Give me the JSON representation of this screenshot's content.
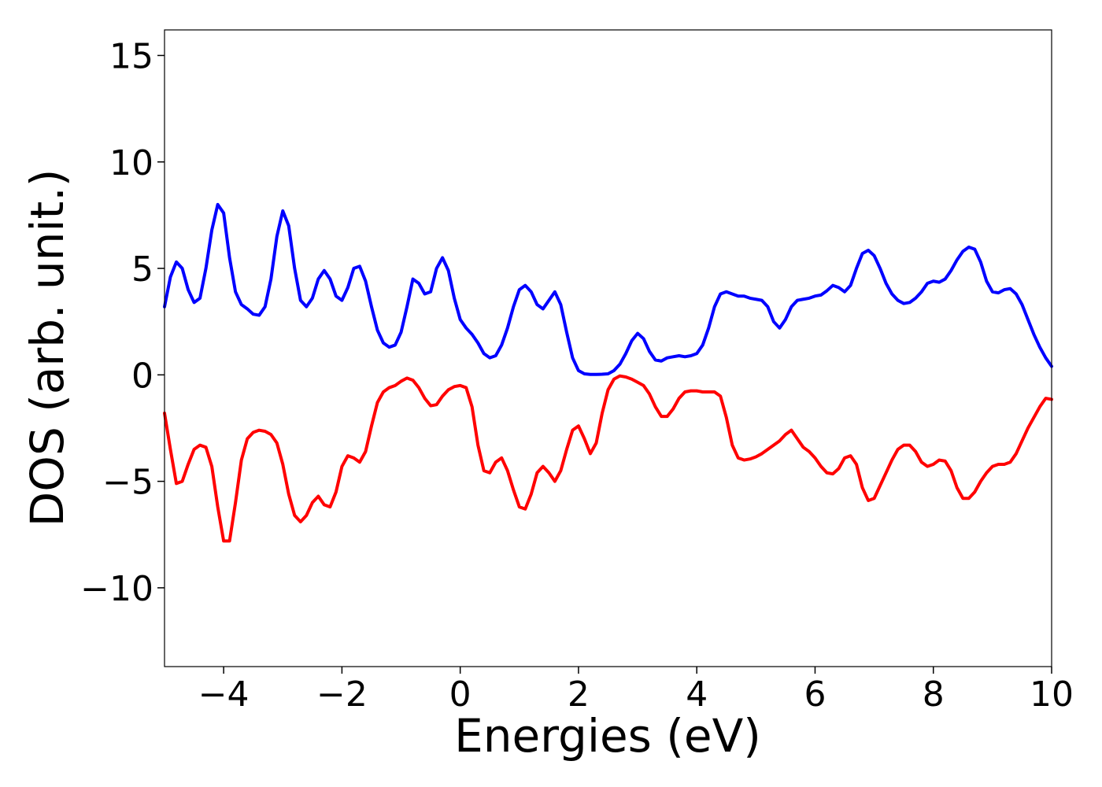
{
  "chart_data": {
    "type": "line",
    "xlabel": "Energies (eV)",
    "ylabel": "DOS (arb. unit.)",
    "xlim": [
      -5,
      10
    ],
    "ylim": [
      -13.7,
      16.2
    ],
    "xticks": [
      {
        "value": -4,
        "label": "−4"
      },
      {
        "value": -2,
        "label": "−2"
      },
      0,
      2,
      4,
      6,
      8,
      10
    ],
    "yticks": [
      {
        "value": -10,
        "label": "−10"
      },
      {
        "value": -5,
        "label": "−5"
      },
      0,
      5,
      10,
      15
    ],
    "x": [
      -5,
      -4.9,
      -4.8,
      -4.7,
      -4.6,
      -4.5,
      -4.4,
      -4.3,
      -4.2,
      -4.1,
      -4,
      -3.9,
      -3.8,
      -3.7,
      -3.6,
      -3.5,
      -3.4,
      -3.3,
      -3.2,
      -3.1,
      -3,
      -2.9,
      -2.8,
      -2.7,
      -2.6,
      -2.5,
      -2.4,
      -2.3,
      -2.2,
      -2.1,
      -2,
      -1.9,
      -1.8,
      -1.7,
      -1.6,
      -1.5,
      -1.4,
      -1.3,
      -1.2,
      -1.1,
      -1,
      -0.9,
      -0.8,
      -0.7,
      -0.6,
      -0.5,
      -0.4,
      -0.3,
      -0.2,
      -0.1,
      0,
      0.1,
      0.2,
      0.3,
      0.4,
      0.5,
      0.6,
      0.7,
      0.8,
      0.9,
      1,
      1.1,
      1.2,
      1.3,
      1.4,
      1.5,
      1.6,
      1.7,
      1.8,
      1.9,
      2,
      2.1,
      2.2,
      2.3,
      2.4,
      2.5,
      2.6,
      2.7,
      2.8,
      2.9,
      3,
      3.1,
      3.2,
      3.3,
      3.4,
      3.5,
      3.6,
      3.7,
      3.8,
      3.9,
      4,
      4.1,
      4.2,
      4.3,
      4.4,
      4.5,
      4.6,
      4.7,
      4.8,
      4.9,
      5,
      5.1,
      5.2,
      5.3,
      5.4,
      5.5,
      5.6,
      5.7,
      5.8,
      5.9,
      6,
      6.1,
      6.2,
      6.3,
      6.4,
      6.5,
      6.6,
      6.7,
      6.8,
      6.9,
      7,
      7.1,
      7.2,
      7.3,
      7.4,
      7.5,
      7.6,
      7.7,
      7.8,
      7.9,
      8,
      8.1,
      8.2,
      8.3,
      8.4,
      8.5,
      8.6,
      8.7,
      8.8,
      8.9,
      9,
      9.1,
      9.2,
      9.3,
      9.4,
      9.5,
      9.6,
      9.7,
      9.8,
      9.9,
      10
    ],
    "series": [
      {
        "color": "#0000ff",
        "values": [
          3.2,
          4.6,
          5.3,
          5.0,
          4.0,
          3.4,
          3.6,
          5.0,
          6.8,
          8.0,
          7.6,
          5.5,
          3.9,
          3.3,
          3.1,
          2.85,
          2.8,
          3.2,
          4.5,
          6.5,
          7.7,
          7.0,
          5.0,
          3.5,
          3.2,
          3.6,
          4.5,
          4.9,
          4.5,
          3.7,
          3.5,
          4.1,
          5.0,
          5.1,
          4.4,
          3.2,
          2.1,
          1.5,
          1.3,
          1.4,
          2.0,
          3.2,
          4.5,
          4.3,
          3.8,
          3.9,
          5.0,
          5.5,
          4.9,
          3.6,
          2.6,
          2.2,
          1.9,
          1.5,
          1.0,
          0.8,
          0.9,
          1.4,
          2.2,
          3.2,
          4.0,
          4.2,
          3.9,
          3.3,
          3.1,
          3.5,
          3.9,
          3.3,
          2.0,
          0.8,
          0.2,
          0.05,
          0.02,
          0.02,
          0.03,
          0.05,
          0.2,
          0.5,
          1.0,
          1.6,
          1.95,
          1.7,
          1.1,
          0.7,
          0.65,
          0.8,
          0.85,
          0.9,
          0.85,
          0.9,
          1.0,
          1.4,
          2.2,
          3.2,
          3.8,
          3.9,
          3.8,
          3.7,
          3.7,
          3.6,
          3.55,
          3.5,
          3.2,
          2.5,
          2.2,
          2.6,
          3.2,
          3.5,
          3.55,
          3.6,
          3.7,
          3.75,
          3.95,
          4.2,
          4.1,
          3.9,
          4.2,
          5.0,
          5.7,
          5.85,
          5.6,
          5.0,
          4.3,
          3.8,
          3.5,
          3.35,
          3.4,
          3.6,
          3.9,
          4.3,
          4.4,
          4.35,
          4.5,
          4.9,
          5.4,
          5.8,
          6.0,
          5.9,
          5.3,
          4.4,
          3.9,
          3.85,
          4.0,
          4.05,
          3.8,
          3.3,
          2.6,
          1.9,
          1.3,
          0.8,
          0.4
        ]
      },
      {
        "color": "#ff0000",
        "values": [
          -1.8,
          -3.5,
          -5.1,
          -5.0,
          -4.2,
          -3.5,
          -3.3,
          -3.4,
          -4.3,
          -6.2,
          -7.8,
          -7.8,
          -6.0,
          -4.0,
          -3.0,
          -2.7,
          -2.6,
          -2.65,
          -2.8,
          -3.2,
          -4.2,
          -5.6,
          -6.6,
          -6.9,
          -6.6,
          -6.0,
          -5.7,
          -6.1,
          -6.2,
          -5.5,
          -4.3,
          -3.8,
          -3.9,
          -4.1,
          -3.6,
          -2.4,
          -1.3,
          -0.8,
          -0.6,
          -0.5,
          -0.3,
          -0.15,
          -0.25,
          -0.6,
          -1.1,
          -1.45,
          -1.4,
          -1.0,
          -0.7,
          -0.55,
          -0.5,
          -0.6,
          -1.5,
          -3.3,
          -4.5,
          -4.6,
          -4.1,
          -3.9,
          -4.5,
          -5.4,
          -6.2,
          -6.3,
          -5.6,
          -4.6,
          -4.3,
          -4.6,
          -5.0,
          -4.5,
          -3.5,
          -2.6,
          -2.4,
          -3.0,
          -3.7,
          -3.2,
          -1.8,
          -0.7,
          -0.2,
          -0.05,
          -0.1,
          -0.2,
          -0.35,
          -0.5,
          -0.9,
          -1.5,
          -1.95,
          -1.95,
          -1.6,
          -1.1,
          -0.8,
          -0.75,
          -0.75,
          -0.8,
          -0.8,
          -0.8,
          -1.0,
          -2.0,
          -3.3,
          -3.9,
          -4.0,
          -3.95,
          -3.85,
          -3.7,
          -3.5,
          -3.3,
          -3.1,
          -2.8,
          -2.6,
          -3.0,
          -3.4,
          -3.6,
          -3.9,
          -4.3,
          -4.6,
          -4.65,
          -4.4,
          -3.9,
          -3.8,
          -4.2,
          -5.3,
          -5.9,
          -5.8,
          -5.2,
          -4.6,
          -4.0,
          -3.5,
          -3.3,
          -3.3,
          -3.6,
          -4.1,
          -4.3,
          -4.2,
          -4.0,
          -4.05,
          -4.5,
          -5.3,
          -5.8,
          -5.8,
          -5.5,
          -5.0,
          -4.6,
          -4.3,
          -4.2,
          -4.2,
          -4.1,
          -3.7,
          -3.1,
          -2.5,
          -2.0,
          -1.5,
          -1.1,
          -1.15
        ]
      }
    ]
  }
}
